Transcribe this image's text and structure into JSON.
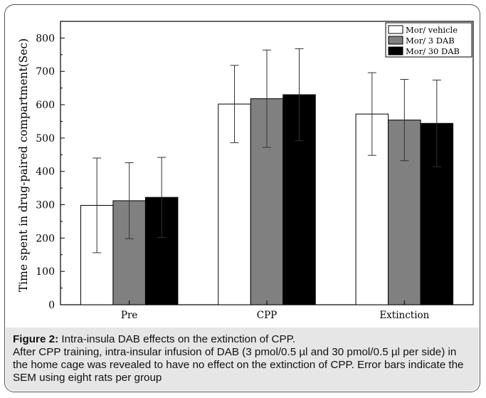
{
  "chart_data": {
    "type": "bar",
    "categories": [
      "Pre",
      "CPP",
      "Extinction"
    ],
    "ylabel": "Time spent in drug-paired compartment(Sec)",
    "xlabel": "",
    "ylim": [
      0,
      850
    ],
    "yticks": [
      0,
      100,
      200,
      300,
      400,
      500,
      600,
      700,
      800
    ],
    "legend_position": "top-right",
    "series": [
      {
        "name": "Mor/ vehicle",
        "color": "#ffffff",
        "values": [
          298,
          602,
          572
        ],
        "errors": [
          142,
          116,
          124
        ]
      },
      {
        "name": "Mor/ 3 DAB",
        "color": "#808080",
        "values": [
          312,
          618,
          554
        ],
        "errors": [
          114,
          146,
          122
        ]
      },
      {
        "name": "Mor/ 30 DAB",
        "color": "#000000",
        "values": [
          322,
          630,
          544
        ],
        "errors": [
          120,
          138,
          130
        ]
      }
    ]
  },
  "caption": {
    "label": "Figure 2:",
    "title": " Intra-insula DAB effects on the extinction of CPP.",
    "body": "After CPP training, intra-insular infusion of DAB (3 pmol/0.5 µl and 30 pmol/0.5 µl per side) in the home cage was revealed to have no effect on the extinction of CPP. Error bars indicate the SEM using eight rats per group"
  }
}
